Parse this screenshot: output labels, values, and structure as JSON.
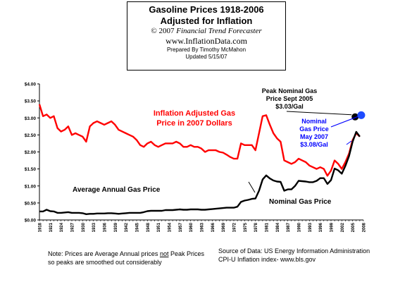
{
  "title_box": {
    "title_line1": "Gasoline Prices 1918-2006",
    "title_line2": "Adjusted for Inflation",
    "copyright_prefix": "© 2007 ",
    "copyright_name": "Financial Trend Forecaster",
    "website": "www.InflationData.com",
    "prepared_by": "Prepared By Timothy McMahon",
    "updated": "Updated 5/15/07"
  },
  "annotations": {
    "peak_nominal": [
      "Peak Nominal Gas",
      "Price Sept 2005",
      "$3.03/Gal"
    ],
    "nominal_2007": [
      "Nominal",
      "Gas Price",
      "May 2007",
      "$3.08/Gal"
    ],
    "inflation_label": [
      "Inflation Adjusted Gas",
      "Price in 2007 Dollars"
    ],
    "average_label": "Average Annual Gas Price",
    "nominal_label": "Nominal Gas Price"
  },
  "footer": {
    "note_line1_a": "Note: Prices are Average Annual prices ",
    "note_line1_not": "not",
    "note_line1_b": " Peak Prices",
    "note_line2": "so peaks are smoothed out considerably",
    "source_line1": "Source of Data:  US Energy Information Administration",
    "source_line2": "CPI-U Inflation index-   www.bls.gov"
  },
  "colors": {
    "inflation_series": "#ff0000",
    "nominal_series": "#000000",
    "nominal_2007_text": "#0000ff",
    "nominal_2007_point": "#1e4bff"
  },
  "chart_data": {
    "type": "line",
    "ylim": [
      0,
      4
    ],
    "y_ticks": [
      "$0.00",
      "$0.50",
      "$1.00",
      "$1.50",
      "$2.00",
      "$2.50",
      "$3.00",
      "$3.50",
      "$4.00"
    ],
    "x_ticks": [
      "1918",
      "1921",
      "1924",
      "1927",
      "1930",
      "1933",
      "1936",
      "1939",
      "1942",
      "1945",
      "1948",
      "1951",
      "1954",
      "1957",
      "1960",
      "1963",
      "1966",
      "1969",
      "1972",
      "1975",
      "1978",
      "1981",
      "1984",
      "1987",
      "1990",
      "1993",
      "1996",
      "1999",
      "2002",
      "2005",
      "2008"
    ],
    "xlim": [
      1918,
      2008
    ],
    "grid": false,
    "series": [
      {
        "name": "Inflation Adjusted Gas Price in 2007 Dollars",
        "color": "#ff0000",
        "points": [
          [
            1918,
            3.4
          ],
          [
            1919,
            3.05
          ],
          [
            1920,
            3.1
          ],
          [
            1921,
            3.0
          ],
          [
            1922,
            3.05
          ],
          [
            1923,
            2.7
          ],
          [
            1924,
            2.6
          ],
          [
            1925,
            2.65
          ],
          [
            1926,
            2.75
          ],
          [
            1927,
            2.5
          ],
          [
            1928,
            2.55
          ],
          [
            1929,
            2.5
          ],
          [
            1930,
            2.45
          ],
          [
            1931,
            2.3
          ],
          [
            1932,
            2.75
          ],
          [
            1933,
            2.85
          ],
          [
            1934,
            2.9
          ],
          [
            1935,
            2.85
          ],
          [
            1936,
            2.8
          ],
          [
            1937,
            2.85
          ],
          [
            1938,
            2.9
          ],
          [
            1939,
            2.8
          ],
          [
            1940,
            2.65
          ],
          [
            1941,
            2.6
          ],
          [
            1942,
            2.55
          ],
          [
            1943,
            2.5
          ],
          [
            1944,
            2.45
          ],
          [
            1945,
            2.35
          ],
          [
            1946,
            2.2
          ],
          [
            1947,
            2.15
          ],
          [
            1948,
            2.25
          ],
          [
            1949,
            2.3
          ],
          [
            1950,
            2.2
          ],
          [
            1951,
            2.15
          ],
          [
            1952,
            2.2
          ],
          [
            1953,
            2.25
          ],
          [
            1954,
            2.25
          ],
          [
            1955,
            2.25
          ],
          [
            1956,
            2.3
          ],
          [
            1957,
            2.25
          ],
          [
            1958,
            2.15
          ],
          [
            1959,
            2.15
          ],
          [
            1960,
            2.2
          ],
          [
            1961,
            2.15
          ],
          [
            1962,
            2.15
          ],
          [
            1963,
            2.1
          ],
          [
            1964,
            2.0
          ],
          [
            1965,
            2.05
          ],
          [
            1966,
            2.05
          ],
          [
            1967,
            2.05
          ],
          [
            1968,
            2.0
          ],
          [
            1969,
            1.98
          ],
          [
            1970,
            1.92
          ],
          [
            1971,
            1.85
          ],
          [
            1972,
            1.8
          ],
          [
            1973,
            1.8
          ],
          [
            1974,
            2.25
          ],
          [
            1975,
            2.2
          ],
          [
            1976,
            2.2
          ],
          [
            1977,
            2.2
          ],
          [
            1978,
            2.05
          ],
          [
            1979,
            2.55
          ],
          [
            1980,
            3.05
          ],
          [
            1981,
            3.08
          ],
          [
            1982,
            2.8
          ],
          [
            1983,
            2.55
          ],
          [
            1984,
            2.4
          ],
          [
            1985,
            2.3
          ],
          [
            1986,
            1.75
          ],
          [
            1987,
            1.7
          ],
          [
            1988,
            1.65
          ],
          [
            1989,
            1.7
          ],
          [
            1990,
            1.8
          ],
          [
            1991,
            1.75
          ],
          [
            1992,
            1.7
          ],
          [
            1993,
            1.6
          ],
          [
            1994,
            1.55
          ],
          [
            1995,
            1.5
          ],
          [
            1996,
            1.55
          ],
          [
            1997,
            1.5
          ],
          [
            1998,
            1.3
          ],
          [
            1999,
            1.45
          ],
          [
            2000,
            1.75
          ],
          [
            2001,
            1.65
          ],
          [
            2002,
            1.5
          ],
          [
            2003,
            1.7
          ],
          [
            2004,
            1.95
          ],
          [
            2005,
            2.35
          ],
          [
            2006,
            2.55
          ],
          [
            2007,
            2.45
          ]
        ]
      },
      {
        "name": "Nominal Gas Price",
        "color": "#000000",
        "points": [
          [
            1918,
            0.25
          ],
          [
            1919,
            0.25
          ],
          [
            1920,
            0.3
          ],
          [
            1921,
            0.26
          ],
          [
            1922,
            0.25
          ],
          [
            1923,
            0.21
          ],
          [
            1924,
            0.21
          ],
          [
            1925,
            0.22
          ],
          [
            1926,
            0.23
          ],
          [
            1927,
            0.21
          ],
          [
            1928,
            0.21
          ],
          [
            1929,
            0.21
          ],
          [
            1930,
            0.2
          ],
          [
            1931,
            0.17
          ],
          [
            1932,
            0.18
          ],
          [
            1933,
            0.18
          ],
          [
            1934,
            0.19
          ],
          [
            1935,
            0.19
          ],
          [
            1936,
            0.19
          ],
          [
            1937,
            0.2
          ],
          [
            1938,
            0.2
          ],
          [
            1939,
            0.19
          ],
          [
            1940,
            0.18
          ],
          [
            1941,
            0.19
          ],
          [
            1942,
            0.2
          ],
          [
            1943,
            0.21
          ],
          [
            1944,
            0.21
          ],
          [
            1945,
            0.21
          ],
          [
            1946,
            0.21
          ],
          [
            1947,
            0.23
          ],
          [
            1948,
            0.26
          ],
          [
            1949,
            0.27
          ],
          [
            1950,
            0.27
          ],
          [
            1951,
            0.27
          ],
          [
            1952,
            0.27
          ],
          [
            1953,
            0.29
          ],
          [
            1954,
            0.29
          ],
          [
            1955,
            0.29
          ],
          [
            1956,
            0.3
          ],
          [
            1957,
            0.31
          ],
          [
            1958,
            0.3
          ],
          [
            1959,
            0.3
          ],
          [
            1960,
            0.31
          ],
          [
            1961,
            0.31
          ],
          [
            1962,
            0.31
          ],
          [
            1963,
            0.3
          ],
          [
            1964,
            0.3
          ],
          [
            1965,
            0.31
          ],
          [
            1966,
            0.32
          ],
          [
            1967,
            0.33
          ],
          [
            1968,
            0.34
          ],
          [
            1969,
            0.35
          ],
          [
            1970,
            0.36
          ],
          [
            1971,
            0.36
          ],
          [
            1972,
            0.36
          ],
          [
            1973,
            0.39
          ],
          [
            1974,
            0.53
          ],
          [
            1975,
            0.57
          ],
          [
            1976,
            0.59
          ],
          [
            1977,
            0.62
          ],
          [
            1978,
            0.63
          ],
          [
            1979,
            0.86
          ],
          [
            1980,
            1.19
          ],
          [
            1981,
            1.31
          ],
          [
            1982,
            1.22
          ],
          [
            1983,
            1.16
          ],
          [
            1984,
            1.13
          ],
          [
            1985,
            1.12
          ],
          [
            1986,
            0.86
          ],
          [
            1987,
            0.9
          ],
          [
            1988,
            0.9
          ],
          [
            1989,
            1.0
          ],
          [
            1990,
            1.15
          ],
          [
            1991,
            1.14
          ],
          [
            1992,
            1.13
          ],
          [
            1993,
            1.11
          ],
          [
            1994,
            1.11
          ],
          [
            1995,
            1.15
          ],
          [
            1996,
            1.23
          ],
          [
            1997,
            1.23
          ],
          [
            1998,
            1.06
          ],
          [
            1999,
            1.17
          ],
          [
            2000,
            1.51
          ],
          [
            2001,
            1.46
          ],
          [
            2002,
            1.36
          ],
          [
            2003,
            1.59
          ],
          [
            2004,
            1.88
          ],
          [
            2005,
            2.3
          ],
          [
            2006,
            2.59
          ],
          [
            2007,
            2.45
          ]
        ]
      }
    ],
    "highlight_points": [
      {
        "label": "Peak Nominal Gas Price Sept 2005",
        "x": 2005.7,
        "y": 3.03,
        "color": "#000000"
      },
      {
        "label": "Nominal Gas Price May 2007",
        "x": 2007.4,
        "y": 3.08,
        "color": "#1e4bff"
      }
    ]
  }
}
